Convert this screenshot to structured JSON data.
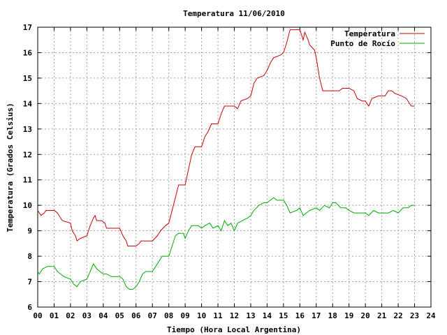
{
  "chart_data": {
    "type": "line",
    "title": "Temperatura 11/06/2010",
    "xlabel": "Tiempo (Hora Local Argentina)",
    "ylabel": "Temperatura (Grados Celsius)",
    "xlim": [
      0,
      24
    ],
    "ylim": [
      6,
      17
    ],
    "grid": true,
    "legend_position": "top-right",
    "x_ticks": [
      "00",
      "01",
      "02",
      "03",
      "04",
      "05",
      "06",
      "07",
      "08",
      "09",
      "10",
      "11",
      "12",
      "13",
      "14",
      "15",
      "16",
      "17",
      "18",
      "19",
      "20",
      "21",
      "22",
      "23",
      "24"
    ],
    "y_ticks": [
      "6",
      "7",
      "8",
      "9",
      "10",
      "11",
      "12",
      "13",
      "14",
      "15",
      "16",
      "17"
    ],
    "series": [
      {
        "name": "Temperatura",
        "color": "#cc0000",
        "points": [
          [
            0.0,
            9.8
          ],
          [
            0.2,
            9.6
          ],
          [
            0.4,
            9.7
          ],
          [
            0.5,
            9.8
          ],
          [
            1.0,
            9.8
          ],
          [
            1.2,
            9.7
          ],
          [
            1.4,
            9.5
          ],
          [
            1.5,
            9.4
          ],
          [
            2.0,
            9.3
          ],
          [
            2.1,
            9.0
          ],
          [
            2.3,
            8.8
          ],
          [
            2.4,
            8.6
          ],
          [
            2.6,
            8.7
          ],
          [
            3.0,
            8.8
          ],
          [
            3.2,
            9.2
          ],
          [
            3.4,
            9.5
          ],
          [
            3.5,
            9.6
          ],
          [
            3.6,
            9.4
          ],
          [
            3.9,
            9.4
          ],
          [
            4.1,
            9.3
          ],
          [
            4.2,
            9.1
          ],
          [
            4.5,
            9.1
          ],
          [
            5.0,
            9.1
          ],
          [
            5.2,
            8.8
          ],
          [
            5.4,
            8.6
          ],
          [
            5.5,
            8.4
          ],
          [
            5.8,
            8.4
          ],
          [
            6.0,
            8.4
          ],
          [
            6.2,
            8.5
          ],
          [
            6.3,
            8.6
          ],
          [
            6.6,
            8.6
          ],
          [
            7.0,
            8.6
          ],
          [
            7.3,
            8.8
          ],
          [
            7.5,
            9.0
          ],
          [
            7.8,
            9.2
          ],
          [
            8.0,
            9.3
          ],
          [
            8.2,
            9.8
          ],
          [
            8.4,
            10.3
          ],
          [
            8.6,
            10.8
          ],
          [
            9.0,
            10.8
          ],
          [
            9.2,
            11.4
          ],
          [
            9.4,
            12.0
          ],
          [
            9.6,
            12.3
          ],
          [
            10.0,
            12.3
          ],
          [
            10.2,
            12.7
          ],
          [
            10.4,
            12.9
          ],
          [
            10.6,
            13.2
          ],
          [
            11.0,
            13.2
          ],
          [
            11.2,
            13.6
          ],
          [
            11.4,
            13.9
          ],
          [
            11.8,
            13.9
          ],
          [
            12.0,
            13.9
          ],
          [
            12.2,
            13.8
          ],
          [
            12.4,
            14.1
          ],
          [
            12.8,
            14.2
          ],
          [
            13.0,
            14.3
          ],
          [
            13.2,
            14.8
          ],
          [
            13.4,
            15.0
          ],
          [
            13.8,
            15.1
          ],
          [
            14.0,
            15.3
          ],
          [
            14.2,
            15.6
          ],
          [
            14.4,
            15.8
          ],
          [
            14.8,
            15.9
          ],
          [
            15.0,
            16.0
          ],
          [
            15.2,
            16.4
          ],
          [
            15.4,
            16.9
          ],
          [
            15.8,
            16.9
          ],
          [
            16.0,
            16.9
          ],
          [
            16.1,
            16.7
          ],
          [
            16.2,
            16.5
          ],
          [
            16.3,
            16.8
          ],
          [
            16.5,
            16.5
          ],
          [
            16.6,
            16.3
          ],
          [
            16.9,
            16.1
          ],
          [
            17.0,
            15.8
          ],
          [
            17.2,
            15.0
          ],
          [
            17.4,
            14.5
          ],
          [
            17.8,
            14.5
          ],
          [
            18.0,
            14.5
          ],
          [
            18.4,
            14.5
          ],
          [
            18.6,
            14.6
          ],
          [
            19.0,
            14.6
          ],
          [
            19.3,
            14.5
          ],
          [
            19.5,
            14.2
          ],
          [
            19.8,
            14.1
          ],
          [
            20.0,
            14.1
          ],
          [
            20.2,
            13.9
          ],
          [
            20.4,
            14.2
          ],
          [
            20.8,
            14.3
          ],
          [
            21.2,
            14.3
          ],
          [
            21.4,
            14.5
          ],
          [
            21.6,
            14.5
          ],
          [
            21.8,
            14.4
          ],
          [
            22.2,
            14.3
          ],
          [
            22.5,
            14.2
          ],
          [
            22.7,
            14.0
          ],
          [
            22.8,
            13.9
          ],
          [
            23.0,
            13.9
          ]
        ]
      },
      {
        "name": "Punto de Rocío",
        "color": "#00aa00",
        "points": [
          [
            0.0,
            7.4
          ],
          [
            0.1,
            7.3
          ],
          [
            0.3,
            7.5
          ],
          [
            0.6,
            7.6
          ],
          [
            1.0,
            7.6
          ],
          [
            1.2,
            7.4
          ],
          [
            1.4,
            7.3
          ],
          [
            1.6,
            7.2
          ],
          [
            2.0,
            7.1
          ],
          [
            2.2,
            6.9
          ],
          [
            2.4,
            6.8
          ],
          [
            2.6,
            7.0
          ],
          [
            3.0,
            7.1
          ],
          [
            3.2,
            7.4
          ],
          [
            3.4,
            7.7
          ],
          [
            3.6,
            7.5
          ],
          [
            3.8,
            7.4
          ],
          [
            4.0,
            7.3
          ],
          [
            4.2,
            7.3
          ],
          [
            4.5,
            7.2
          ],
          [
            5.0,
            7.2
          ],
          [
            5.2,
            7.1
          ],
          [
            5.4,
            6.8
          ],
          [
            5.6,
            6.7
          ],
          [
            5.8,
            6.7
          ],
          [
            6.0,
            6.8
          ],
          [
            6.2,
            7.0
          ],
          [
            6.4,
            7.3
          ],
          [
            6.6,
            7.4
          ],
          [
            7.0,
            7.4
          ],
          [
            7.2,
            7.6
          ],
          [
            7.4,
            7.8
          ],
          [
            7.6,
            8.0
          ],
          [
            8.0,
            8.0
          ],
          [
            8.2,
            8.4
          ],
          [
            8.4,
            8.8
          ],
          [
            8.6,
            8.9
          ],
          [
            8.9,
            8.9
          ],
          [
            9.0,
            8.7
          ],
          [
            9.2,
            9.0
          ],
          [
            9.4,
            9.2
          ],
          [
            9.8,
            9.2
          ],
          [
            10.0,
            9.1
          ],
          [
            10.2,
            9.2
          ],
          [
            10.5,
            9.3
          ],
          [
            10.7,
            9.1
          ],
          [
            11.0,
            9.2
          ],
          [
            11.2,
            9.0
          ],
          [
            11.4,
            9.4
          ],
          [
            11.6,
            9.2
          ],
          [
            11.8,
            9.3
          ],
          [
            12.0,
            9.0
          ],
          [
            12.2,
            9.3
          ],
          [
            12.5,
            9.4
          ],
          [
            12.8,
            9.5
          ],
          [
            13.0,
            9.6
          ],
          [
            13.2,
            9.8
          ],
          [
            13.5,
            10.0
          ],
          [
            13.8,
            10.1
          ],
          [
            14.0,
            10.1
          ],
          [
            14.2,
            10.2
          ],
          [
            14.4,
            10.3
          ],
          [
            14.6,
            10.2
          ],
          [
            15.0,
            10.2
          ],
          [
            15.2,
            10.0
          ],
          [
            15.4,
            9.7
          ],
          [
            15.8,
            9.8
          ],
          [
            16.0,
            9.9
          ],
          [
            16.2,
            9.6
          ],
          [
            16.4,
            9.7
          ],
          [
            16.6,
            9.8
          ],
          [
            17.0,
            9.9
          ],
          [
            17.2,
            9.8
          ],
          [
            17.5,
            10.0
          ],
          [
            17.8,
            9.9
          ],
          [
            18.0,
            10.1
          ],
          [
            18.2,
            10.1
          ],
          [
            18.5,
            9.9
          ],
          [
            18.8,
            9.9
          ],
          [
            19.0,
            9.8
          ],
          [
            19.3,
            9.7
          ],
          [
            19.6,
            9.7
          ],
          [
            20.0,
            9.7
          ],
          [
            20.2,
            9.6
          ],
          [
            20.5,
            9.8
          ],
          [
            20.8,
            9.7
          ],
          [
            21.0,
            9.7
          ],
          [
            21.4,
            9.7
          ],
          [
            21.7,
            9.8
          ],
          [
            22.0,
            9.7
          ],
          [
            22.3,
            9.9
          ],
          [
            22.6,
            9.9
          ],
          [
            22.8,
            10.0
          ],
          [
            23.0,
            10.0
          ]
        ]
      }
    ]
  }
}
